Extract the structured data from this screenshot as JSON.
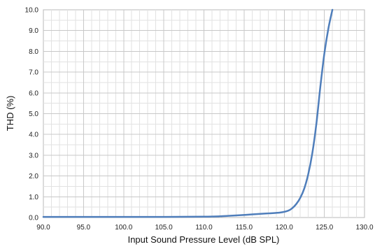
{
  "chart_data": {
    "type": "line",
    "title": "",
    "xlabel": "Input Sound Pressure Level (dB SPL)",
    "ylabel": "THD (%)",
    "xlim": [
      90,
      130
    ],
    "ylim": [
      0,
      10
    ],
    "x_major_ticks": [
      "90.0",
      "95.0",
      "100.0",
      "105.0",
      "110.0",
      "115.0",
      "120.0",
      "125.0",
      "130.0"
    ],
    "y_major_ticks": [
      "0.0",
      "1.0",
      "2.0",
      "3.0",
      "4.0",
      "5.0",
      "6.0",
      "7.0",
      "8.0",
      "9.0",
      "10.0"
    ],
    "grid": true,
    "legend": "none",
    "series_color": "#4f7ebb",
    "grid_color": "#c8c8c8",
    "series": [
      {
        "x": [
          90,
          95,
          100,
          105,
          110,
          112,
          114,
          116,
          118,
          119.5,
          120.5,
          121,
          121.5,
          122,
          122.5,
          123,
          123.5,
          124,
          124.5,
          125,
          125.5,
          126
        ],
        "values": [
          0.03,
          0.03,
          0.03,
          0.03,
          0.04,
          0.06,
          0.1,
          0.15,
          0.2,
          0.24,
          0.33,
          0.45,
          0.65,
          0.95,
          1.4,
          2.1,
          3.1,
          4.5,
          6.3,
          7.9,
          9.1,
          10.0
        ]
      }
    ]
  }
}
